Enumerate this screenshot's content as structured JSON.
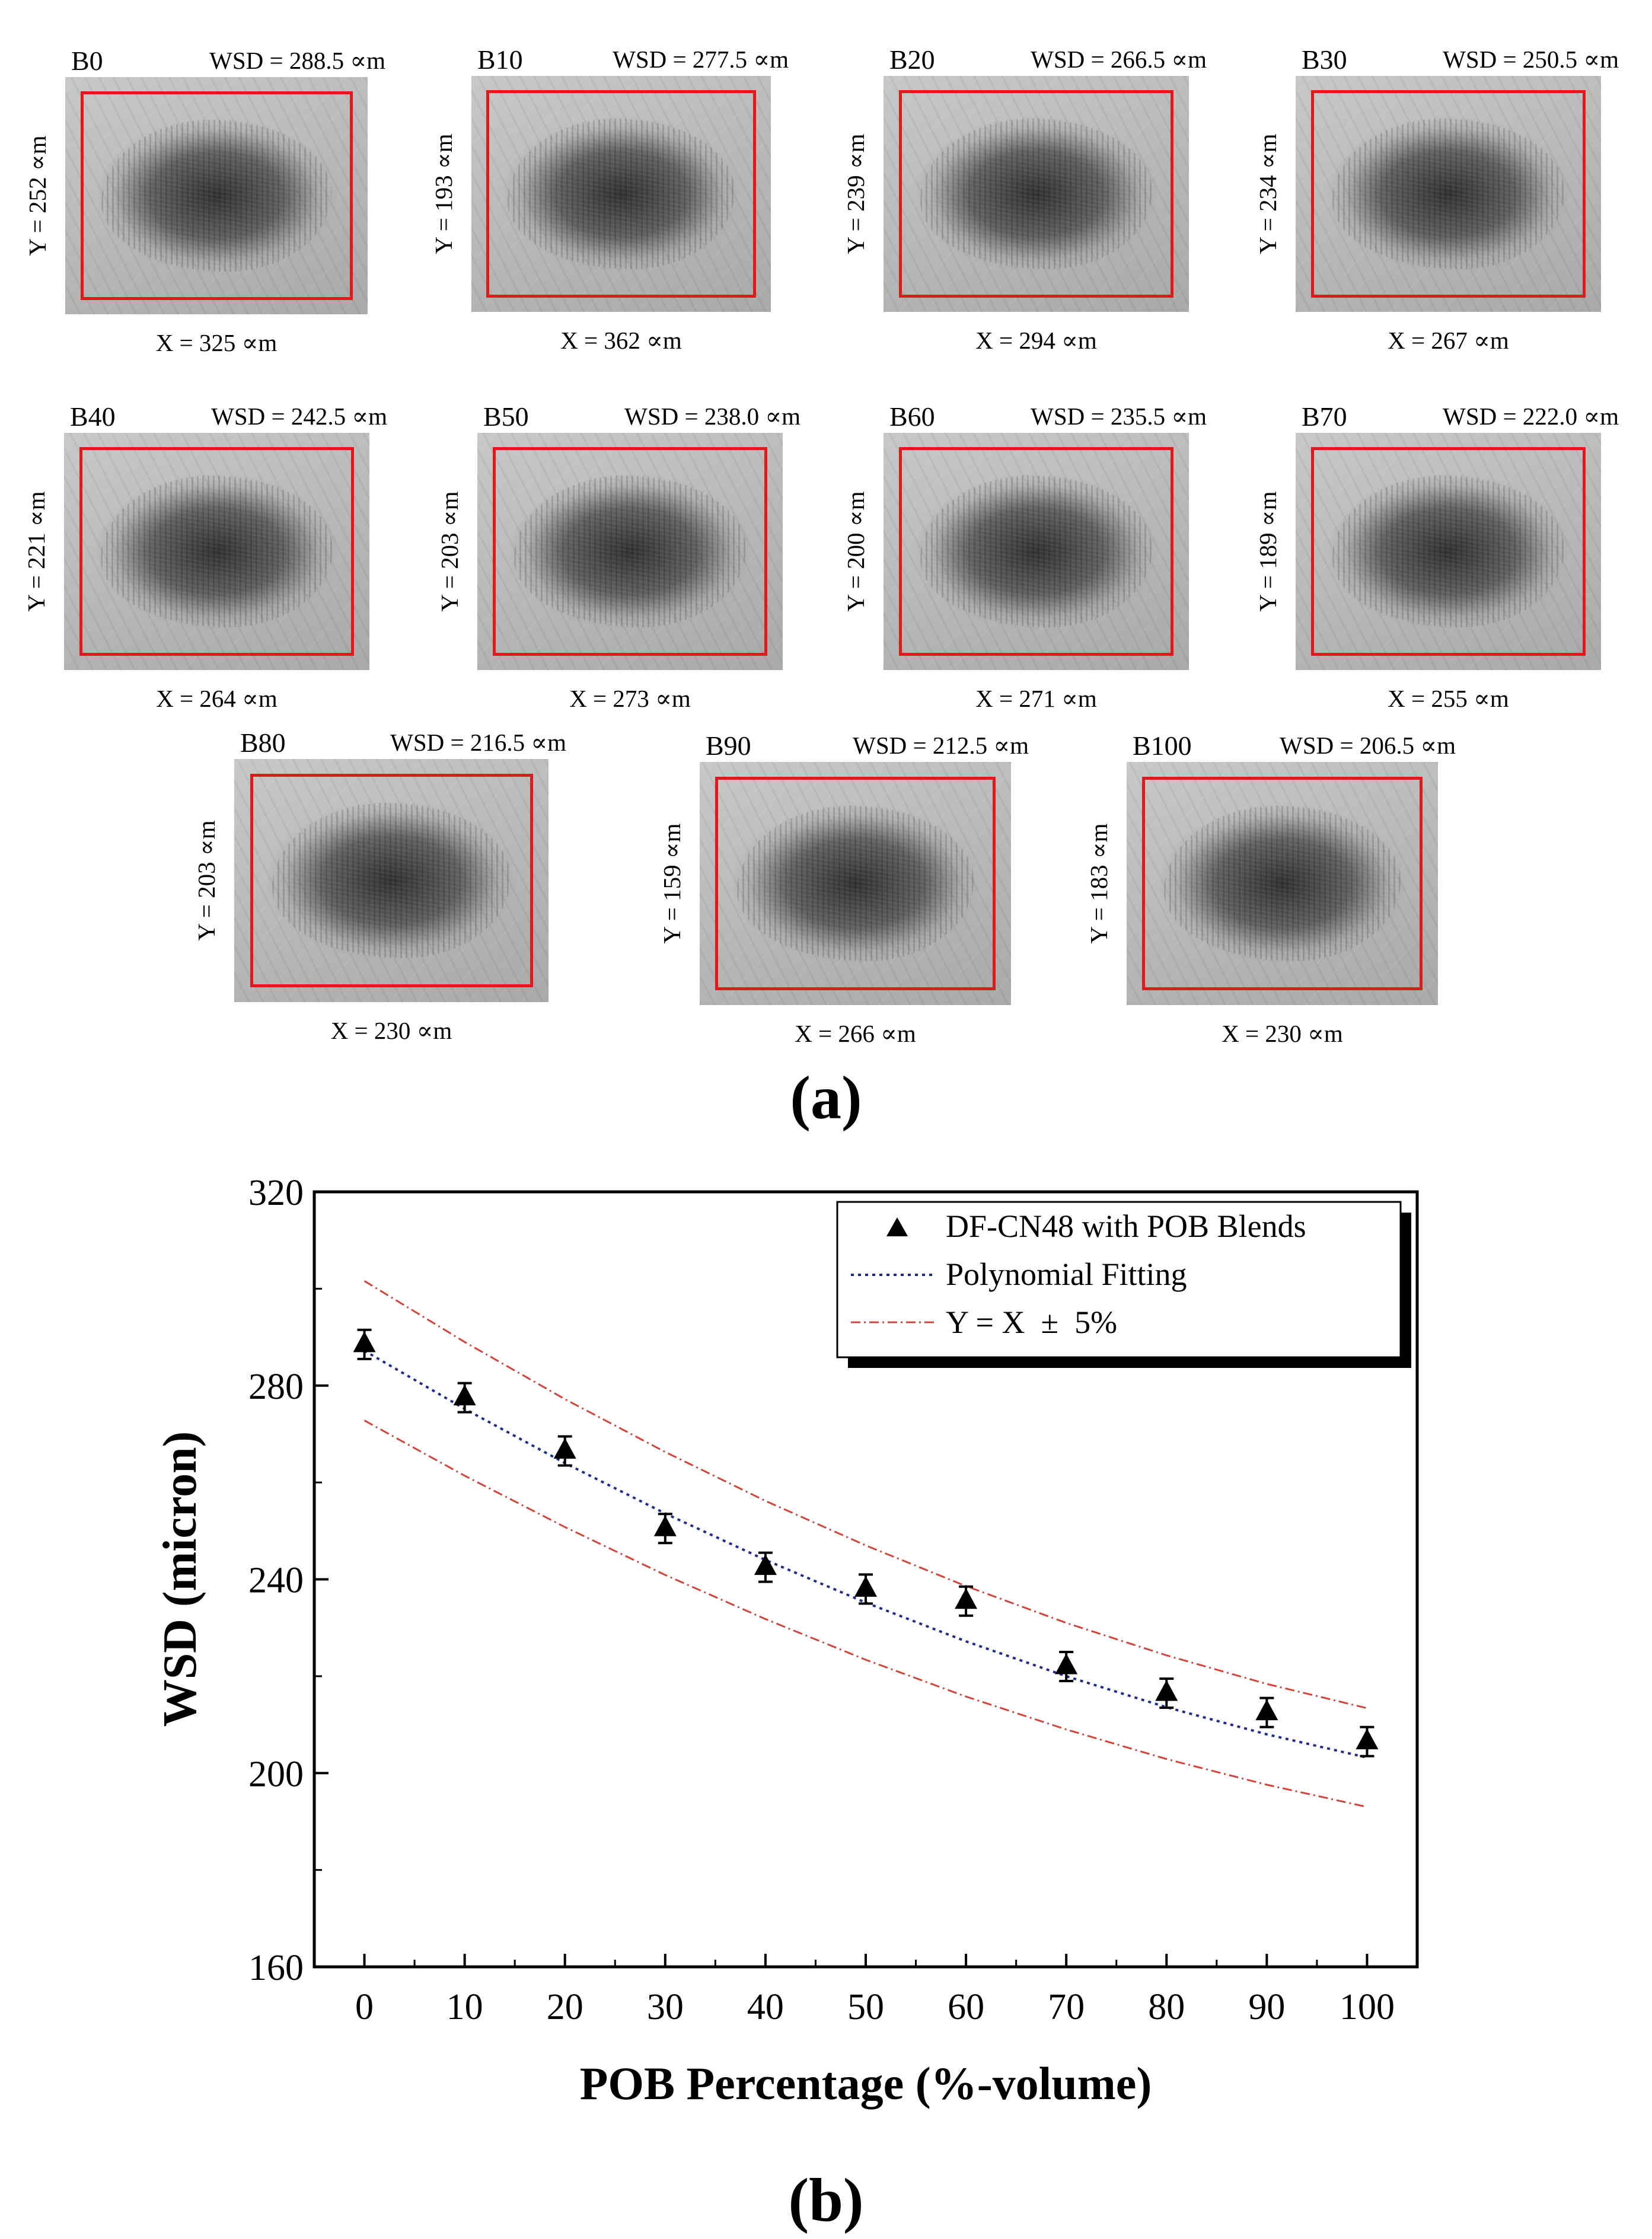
{
  "panel_a": {
    "caption": "(a)",
    "micrographs": [
      {
        "label": "B0",
        "wsd": "WSD = 288.5 ∝m",
        "x": "X = 325 ∝m",
        "y": "Y = 252 ∝m"
      },
      {
        "label": "B10",
        "wsd": "WSD = 277.5 ∝m",
        "x": "X = 362 ∝m",
        "y": "Y = 193 ∝m"
      },
      {
        "label": "B20",
        "wsd": "WSD = 266.5 ∝m",
        "x": "X = 294 ∝m",
        "y": "Y = 239 ∝m"
      },
      {
        "label": "B30",
        "wsd": "WSD = 250.5 ∝m",
        "x": "X = 267 ∝m",
        "y": "Y = 234 ∝m"
      },
      {
        "label": "B40",
        "wsd": "WSD = 242.5 ∝m",
        "x": "X = 264 ∝m",
        "y": "Y = 221 ∝m"
      },
      {
        "label": "B50",
        "wsd": "WSD = 238.0 ∝m",
        "x": "X = 273 ∝m",
        "y": "Y = 203 ∝m"
      },
      {
        "label": "B60",
        "wsd": "WSD = 235.5 ∝m",
        "x": "X = 271 ∝m",
        "y": "Y = 200 ∝m"
      },
      {
        "label": "B70",
        "wsd": "WSD = 222.0 ∝m",
        "x": "X = 255 ∝m",
        "y": "Y = 189 ∝m"
      },
      {
        "label": "B80",
        "wsd": "WSD = 216.5 ∝m",
        "x": "X = 230 ∝m",
        "y": "Y = 203 ∝m"
      },
      {
        "label": "B90",
        "wsd": "WSD = 212.5 ∝m",
        "x": "X = 266 ∝m",
        "y": "Y = 159 ∝m"
      },
      {
        "label": "B100",
        "wsd": "WSD = 206.5 ∝m",
        "x": "X = 230 ∝m",
        "y": "Y = 183 ∝m"
      }
    ]
  },
  "panel_b": {
    "caption": "(b)"
  },
  "chart_data": {
    "type": "scatter",
    "title": "",
    "xlabel": "POB Percentage (%-volume)",
    "ylabel": "WSD (micron)",
    "xlim": [
      -5,
      105
    ],
    "ylim": [
      160,
      320
    ],
    "xticks": [
      0,
      10,
      20,
      30,
      40,
      50,
      60,
      70,
      80,
      90,
      100
    ],
    "yticks": [
      160,
      200,
      240,
      280,
      320
    ],
    "legend_position": "top-right",
    "series": [
      {
        "name": "DF-CN48 with POB Blends",
        "kind": "markers-with-error-bars",
        "marker": "triangle",
        "color": "#000000",
        "x": [
          0,
          10,
          20,
          30,
          40,
          50,
          60,
          70,
          80,
          90,
          100
        ],
        "y": [
          288.5,
          277.5,
          266.5,
          250.5,
          242.5,
          238.0,
          235.5,
          222.0,
          216.5,
          212.5,
          206.5
        ],
        "error": [
          3,
          3,
          3,
          3,
          3,
          3,
          3,
          3,
          3,
          3,
          3
        ]
      },
      {
        "name": "Polynomial Fitting",
        "kind": "dotted-line",
        "color": "#1f2a8c",
        "x": [
          0,
          10,
          20,
          30,
          40,
          50,
          60,
          70,
          80,
          90,
          100
        ],
        "y": [
          287.2,
          275.2,
          264.0,
          253.6,
          244.0,
          235.2,
          227.2,
          220.0,
          213.6,
          208.0,
          203.2
        ]
      },
      {
        "name": "Y = X  ±  5%",
        "kind": "dash-dot-line",
        "color": "#d0453c",
        "bands": [
          {
            "x": [
              0,
              10,
              20,
              30,
              40,
              50,
              60,
              70,
              80,
              90,
              100
            ],
            "y": [
              301.6,
              289.0,
              277.2,
              266.3,
              256.2,
              247.0,
              238.6,
              231.0,
              224.3,
              218.4,
              213.4
            ]
          },
          {
            "x": [
              0,
              10,
              20,
              30,
              40,
              50,
              60,
              70,
              80,
              90,
              100
            ],
            "y": [
              272.8,
              261.4,
              250.8,
              240.9,
              231.8,
              223.4,
              215.8,
              209.0,
              202.9,
              197.6,
              193.0
            ]
          }
        ]
      }
    ]
  }
}
